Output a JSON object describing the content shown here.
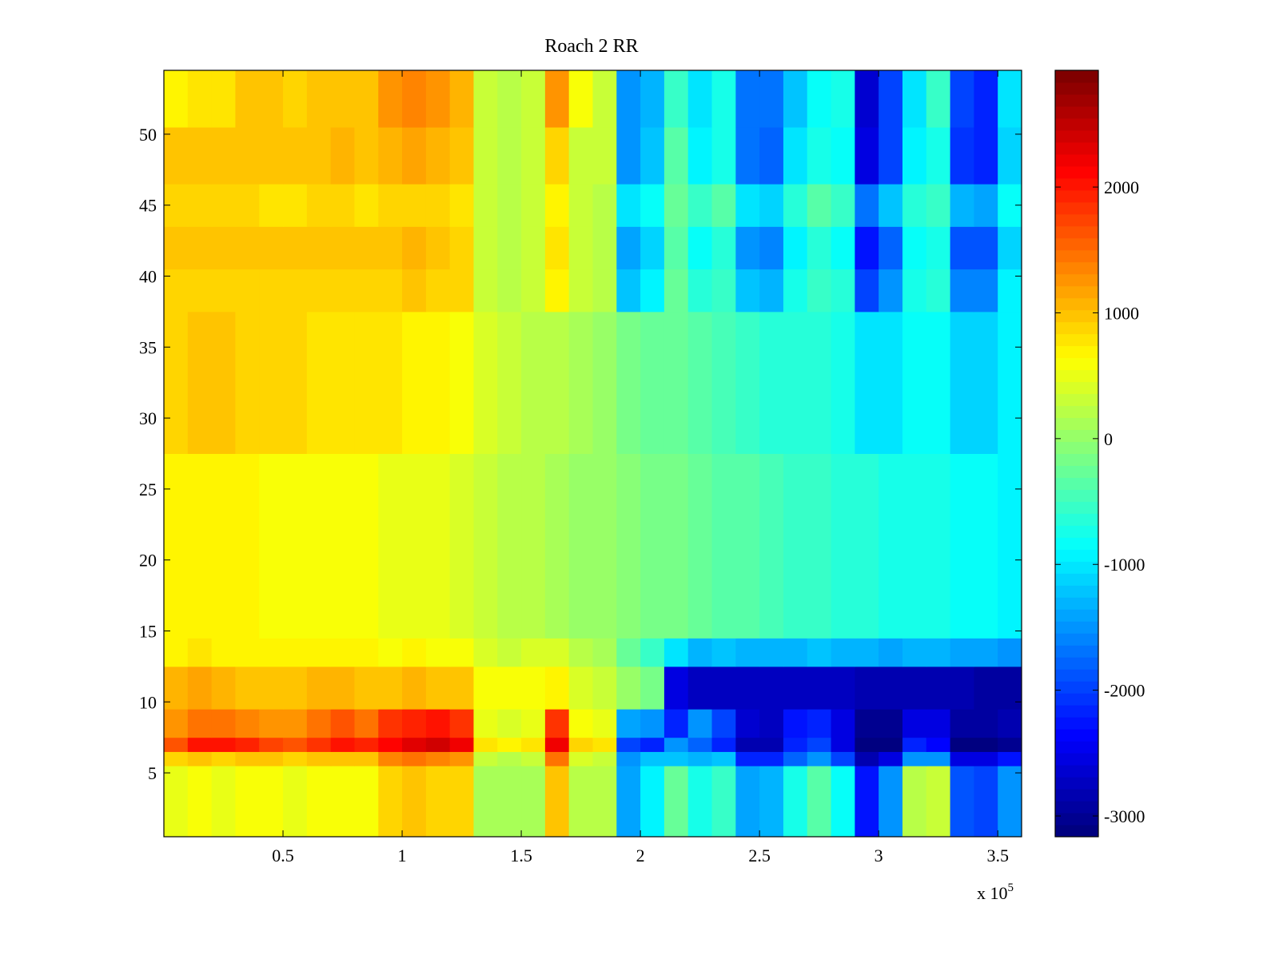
{
  "chart_data": {
    "type": "heatmap",
    "title": "Roach 2 RR",
    "xlabel": "",
    "ylabel": "",
    "x_multiplier_label": "x 10",
    "x_multiplier_exponent": "5",
    "xlim": [
      0,
      360000
    ],
    "ylim": [
      0.5,
      54.5
    ],
    "x_ticks": [
      50000,
      100000,
      150000,
      200000,
      250000,
      300000,
      350000
    ],
    "x_tick_labels": [
      "0.5",
      "1",
      "1.5",
      "2",
      "2.5",
      "3",
      "3.5"
    ],
    "y_ticks": [
      5,
      10,
      15,
      20,
      25,
      30,
      35,
      40,
      45,
      50
    ],
    "y_tick_labels": [
      "5",
      "10",
      "15",
      "20",
      "25",
      "30",
      "35",
      "40",
      "45",
      "50"
    ],
    "colormap": "jet",
    "clim": [
      -3165,
      2928
    ],
    "colorbar_ticks": [
      2000,
      1000,
      0,
      -1000,
      -2000,
      -3000
    ],
    "colorbar_tick_labels": [
      "2000",
      "1000",
      "0",
      "-1000",
      "-2000",
      "-3000"
    ],
    "x_bin_edges_step": 10000,
    "row_band_edges": [
      0.5,
      5.5,
      6.5,
      7.5,
      9.5,
      12.5,
      14.5,
      27.5,
      37.5,
      40.5,
      43.5,
      46.5,
      50.5,
      54.5
    ],
    "z": [
      [
        500,
        550,
        500,
        600,
        550,
        500,
        550,
        600,
        550,
        900,
        950,
        900,
        850,
        150,
        100,
        150,
        1000,
        250,
        200,
        -1400,
        -900,
        -300,
        -700,
        -500,
        -1400,
        -1300,
        -700,
        -400,
        -800,
        -2300,
        -1500,
        200,
        300,
        -1900,
        -2000,
        -1500
      ],
      [
        900,
        950,
        900,
        1000,
        950,
        900,
        950,
        1000,
        950,
        1400,
        1450,
        1400,
        1300,
        300,
        250,
        300,
        1500,
        400,
        350,
        -1500,
        -1200,
        -1200,
        -1300,
        -1200,
        -2200,
        -2200,
        -1800,
        -1500,
        -2000,
        -2800,
        -2500,
        -1500,
        -1500,
        -2500,
        -2500,
        -2300
      ],
      [
        1600,
        2000,
        2000,
        1900,
        1700,
        1600,
        1800,
        2000,
        1900,
        2100,
        2300,
        2400,
        2200,
        800,
        700,
        800,
        2200,
        900,
        800,
        -2000,
        -2200,
        -1500,
        -1800,
        -2200,
        -2800,
        -2800,
        -2200,
        -2000,
        -2500,
        -3100,
        -3100,
        -2200,
        -2400,
        -3100,
        -3100,
        -3000
      ],
      [
        1300,
        1500,
        1500,
        1400,
        1300,
        1300,
        1500,
        1600,
        1500,
        1800,
        1900,
        2000,
        1800,
        500,
        400,
        500,
        1800,
        600,
        500,
        -1400,
        -1500,
        -2200,
        -1500,
        -2000,
        -2600,
        -2700,
        -2300,
        -2200,
        -2500,
        -3000,
        -3000,
        -2500,
        -2500,
        -2900,
        -2900,
        -2800
      ],
      [
        1100,
        1200,
        1100,
        1000,
        1000,
        1000,
        1050,
        1100,
        1000,
        1000,
        1050,
        1000,
        950,
        600,
        550,
        600,
        700,
        400,
        350,
        0,
        -200,
        -2500,
        -2700,
        -2700,
        -2700,
        -2700,
        -2700,
        -2700,
        -2700,
        -2800,
        -2800,
        -2800,
        -2800,
        -2800,
        -2900,
        -2900
      ],
      [
        700,
        750,
        700,
        700,
        650,
        650,
        700,
        700,
        650,
        600,
        650,
        600,
        550,
        400,
        350,
        400,
        400,
        200,
        150,
        -300,
        -500,
        -1000,
        -1300,
        -1200,
        -1300,
        -1300,
        -1300,
        -1200,
        -1300,
        -1300,
        -1400,
        -1300,
        -1300,
        -1400,
        -1400,
        -1500
      ],
      [
        700,
        700,
        680,
        660,
        640,
        620,
        600,
        580,
        560,
        540,
        520,
        500,
        450,
        350,
        250,
        200,
        150,
        50,
        0,
        -100,
        -150,
        -200,
        -300,
        -350,
        -400,
        -450,
        -500,
        -550,
        -600,
        -650,
        -700,
        -700,
        -750,
        -800,
        -850,
        -900
      ],
      [
        900,
        950,
        950,
        900,
        850,
        850,
        800,
        800,
        750,
        750,
        700,
        700,
        600,
        400,
        300,
        250,
        250,
        100,
        0,
        -200,
        -250,
        -300,
        -400,
        -450,
        -550,
        -600,
        -650,
        -650,
        -700,
        -1000,
        -1000,
        -800,
        -800,
        -1100,
        -1100,
        -900
      ],
      [
        900,
        900,
        850,
        900,
        850,
        850,
        900,
        900,
        850,
        900,
        950,
        900,
        850,
        300,
        250,
        300,
        700,
        300,
        250,
        -1200,
        -900,
        -300,
        -600,
        -500,
        -1200,
        -1300,
        -700,
        -500,
        -600,
        -2000,
        -1500,
        -700,
        -600,
        -1600,
        -1600,
        -900
      ],
      [
        950,
        1000,
        950,
        1000,
        950,
        950,
        1000,
        1000,
        950,
        1000,
        1050,
        1000,
        900,
        300,
        250,
        300,
        800,
        300,
        250,
        -1400,
        -1100,
        -400,
        -800,
        -600,
        -1500,
        -1600,
        -900,
        -600,
        -800,
        -2300,
        -1800,
        -800,
        -700,
        -1900,
        -1900,
        -1100
      ],
      [
        850,
        900,
        850,
        850,
        800,
        800,
        850,
        850,
        800,
        850,
        900,
        850,
        800,
        300,
        250,
        300,
        700,
        300,
        250,
        -1000,
        -800,
        -300,
        -500,
        -400,
        -1000,
        -1100,
        -600,
        -400,
        -500,
        -1700,
        -1200,
        -600,
        -500,
        -1300,
        -1400,
        -800
      ],
      [
        950,
        1000,
        950,
        1000,
        950,
        950,
        1000,
        1050,
        1000,
        1100,
        1150,
        1100,
        1000,
        300,
        250,
        300,
        900,
        350,
        300,
        -1500,
        -1200,
        -400,
        -900,
        -700,
        -1700,
        -1800,
        -1000,
        -700,
        -800,
        -2500,
        -2000,
        -900,
        -700,
        -2100,
        -2200,
        -1100
      ],
      [
        700,
        800,
        750,
        1000,
        1000,
        900,
        950,
        1000,
        950,
        1300,
        1350,
        1300,
        1100,
        300,
        250,
        300,
        1300,
        600,
        300,
        -1500,
        -1300,
        -500,
        -1000,
        -700,
        -1700,
        -1700,
        -1200,
        -800,
        -700,
        -2600,
        -2000,
        -1000,
        -500,
        -2000,
        -2200,
        -1000
      ]
    ]
  }
}
